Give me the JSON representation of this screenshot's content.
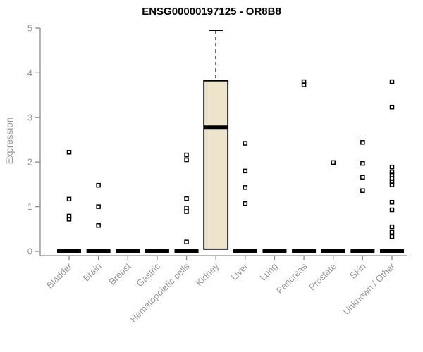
{
  "chart_data": {
    "type": "boxplot",
    "title": "ENSG00000197125 - OR8B8",
    "xlabel": "",
    "ylabel": "Expression",
    "ylim": [
      0,
      5
    ],
    "yticks": [
      0,
      1,
      2,
      3,
      4,
      5
    ],
    "grid": false,
    "legend": null,
    "categories": [
      "Bladder",
      "Brain",
      "Breast",
      "Gastric",
      "Hematopoietic cells",
      "Kidney",
      "Liver",
      "Lung",
      "Pancreas",
      "Prostate",
      "Skin",
      "Unknown / Other"
    ],
    "boxes": [
      {
        "category": "Bladder",
        "q1": 0,
        "median": 0,
        "q3": 0,
        "whisker_low": 0,
        "whisker_high": 0,
        "outliers": [
          2.22,
          1.17,
          0.79,
          0.72
        ]
      },
      {
        "category": "Brain",
        "q1": 0,
        "median": 0,
        "q3": 0,
        "whisker_low": 0,
        "whisker_high": 0,
        "outliers": [
          1.48,
          1.0,
          0.58
        ]
      },
      {
        "category": "Breast",
        "q1": 0,
        "median": 0,
        "q3": 0,
        "whisker_low": 0,
        "whisker_high": 0,
        "outliers": []
      },
      {
        "category": "Gastric",
        "q1": 0,
        "median": 0,
        "q3": 0,
        "whisker_low": 0,
        "whisker_high": 0,
        "outliers": []
      },
      {
        "category": "Hematopoietic cells",
        "q1": 0,
        "median": 0,
        "q3": 0,
        "whisker_low": 0,
        "whisker_high": 0,
        "outliers": [
          2.16,
          2.05,
          1.18,
          0.97,
          0.89,
          0.21
        ]
      },
      {
        "category": "Kidney",
        "q1": 0.05,
        "median": 2.78,
        "q3": 3.82,
        "whisker_low": 0.05,
        "whisker_high": 4.95,
        "outliers": []
      },
      {
        "category": "Liver",
        "q1": 0,
        "median": 0,
        "q3": 0,
        "whisker_low": 0,
        "whisker_high": 0,
        "outliers": [
          2.42,
          1.8,
          1.43,
          1.07
        ]
      },
      {
        "category": "Lung",
        "q1": 0,
        "median": 0,
        "q3": 0,
        "whisker_low": 0,
        "whisker_high": 0,
        "outliers": []
      },
      {
        "category": "Pancreas",
        "q1": 0,
        "median": 0,
        "q3": 0,
        "whisker_low": 0,
        "whisker_high": 0,
        "outliers": [
          3.8,
          3.73
        ]
      },
      {
        "category": "Prostate",
        "q1": 0,
        "median": 0,
        "q3": 0,
        "whisker_low": 0,
        "whisker_high": 0,
        "outliers": [
          1.99
        ]
      },
      {
        "category": "Skin",
        "q1": 0,
        "median": 0,
        "q3": 0,
        "whisker_low": 0,
        "whisker_high": 0,
        "outliers": [
          2.44,
          1.97,
          1.66,
          1.36
        ]
      },
      {
        "category": "Unknown / Other",
        "q1": 0,
        "median": 0,
        "q3": 0,
        "whisker_low": 0,
        "whisker_high": 0,
        "outliers": [
          3.8,
          3.23,
          1.89,
          1.78,
          1.71,
          1.63,
          1.56,
          1.49,
          1.1,
          0.93,
          0.55,
          0.43,
          0.33
        ]
      }
    ],
    "colors": {
      "box_fill": "#ECE5CB",
      "box_border": "#000000",
      "median": "#000000",
      "collapsed_bar": "#000000",
      "outlier": "#000000",
      "axis": "#8C8C8C",
      "tick_label": "#969696",
      "title": "#000000",
      "background": "#FFFFFF"
    },
    "marker": "open-square"
  }
}
